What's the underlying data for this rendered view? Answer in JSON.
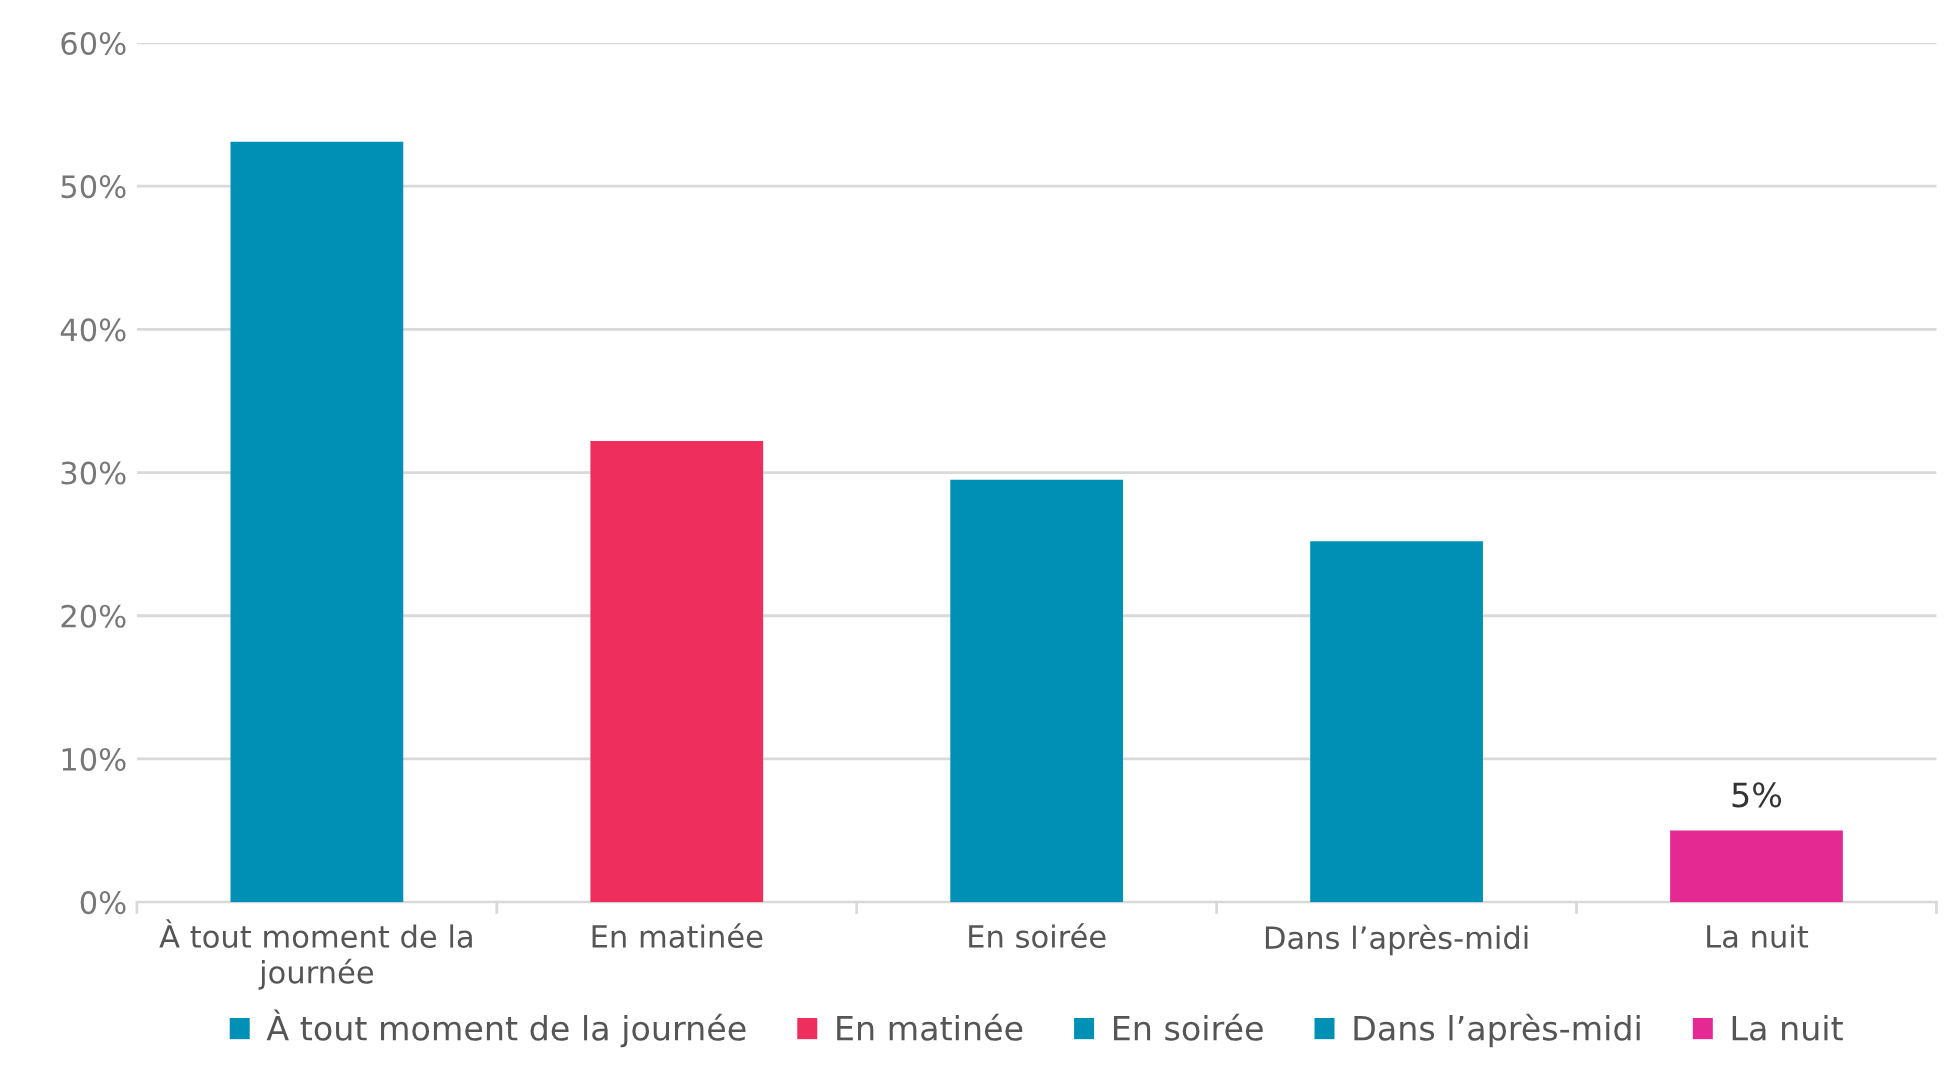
{
  "chart_data": {
    "type": "bar",
    "categories": [
      "À tout moment de la journée",
      "En matinée",
      "En soirée",
      "Dans l’après-midi",
      "La nuit"
    ],
    "series": [
      {
        "name": "À tout moment de la journée",
        "color": "#008fb5",
        "values": [
          53.1,
          null,
          null,
          null,
          null
        ]
      },
      {
        "name": "En matinée",
        "color": "#ee2e5c",
        "values": [
          null,
          32.2,
          null,
          null,
          null
        ]
      },
      {
        "name": "En soirée",
        "color": "#008fb5",
        "values": [
          null,
          null,
          29.5,
          null,
          null
        ]
      },
      {
        "name": "Dans l’après-midi",
        "color": "#008fb5",
        "values": [
          null,
          null,
          null,
          25.2,
          null
        ]
      },
      {
        "name": "La nuit",
        "color": "#e52993",
        "values": [
          null,
          null,
          null,
          null,
          5
        ],
        "value_labels": [
          null,
          null,
          null,
          null,
          "5%"
        ]
      }
    ],
    "ylim": [
      0,
      60
    ],
    "yticks": [
      {
        "value": 0,
        "label": "0%"
      },
      {
        "value": 10,
        "label": "10%"
      },
      {
        "value": 20,
        "label": "20%"
      },
      {
        "value": 30,
        "label": "30%"
      },
      {
        "value": 40,
        "label": "40%"
      },
      {
        "value": 50,
        "label": "50%"
      },
      {
        "value": 60,
        "label": "60%"
      }
    ],
    "grid": "y",
    "legend": "bottom"
  }
}
